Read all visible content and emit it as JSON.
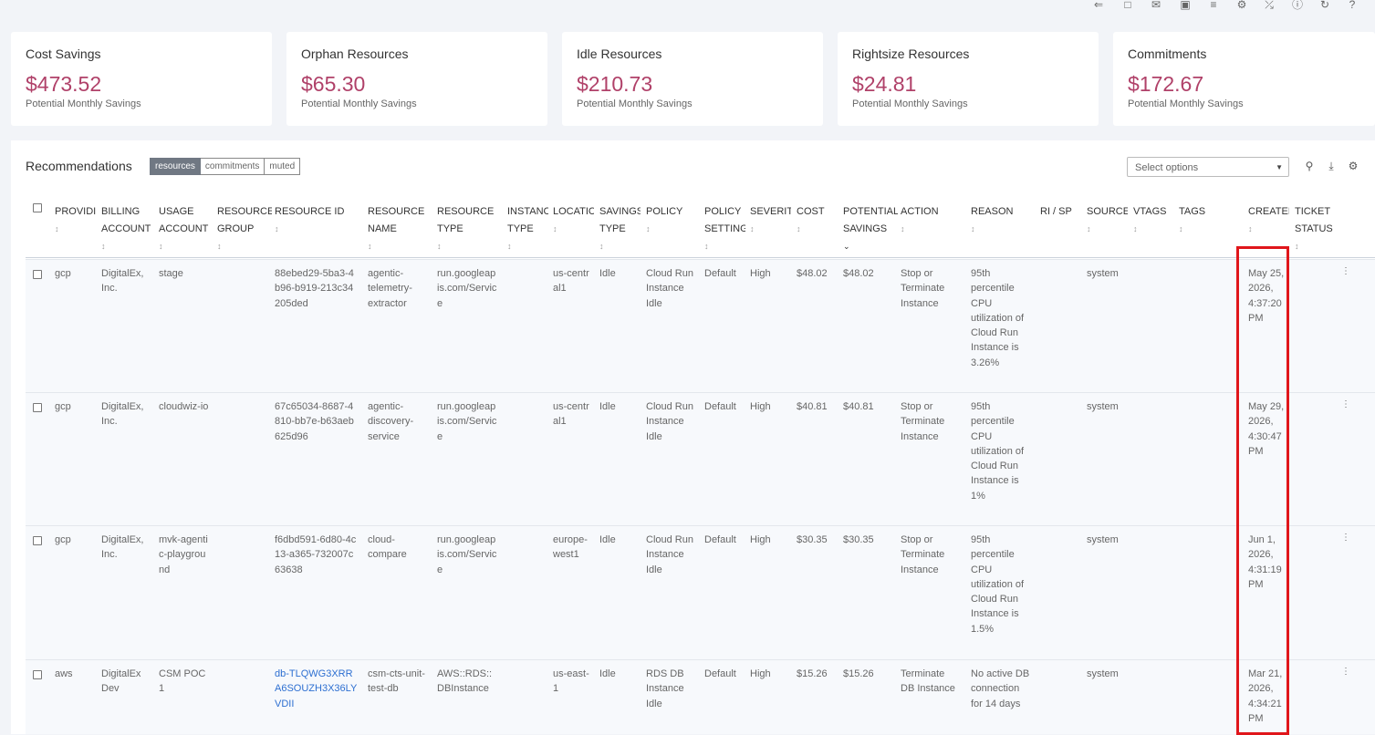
{
  "top_icons": [
    "share-icon",
    "bookmark-icon",
    "mail-icon",
    "camera-icon",
    "sliders-icon",
    "gear-icon",
    "wrench-icon",
    "info-icon",
    "refresh-icon",
    "help-icon"
  ],
  "cards": [
    {
      "title": "Cost Savings",
      "value": "$473.52",
      "sub": "Potential Monthly Savings"
    },
    {
      "title": "Orphan Resources",
      "value": "$65.30",
      "sub": "Potential Monthly Savings"
    },
    {
      "title": "Idle Resources",
      "value": "$210.73",
      "sub": "Potential Monthly Savings"
    },
    {
      "title": "Rightsize Resources",
      "value": "$24.81",
      "sub": "Potential Monthly Savings"
    },
    {
      "title": "Commitments",
      "value": "$172.67",
      "sub": "Potential Monthly Savings"
    }
  ],
  "recommendations": {
    "title": "Recommendations",
    "tabs": [
      "resources",
      "commitments",
      "muted"
    ],
    "active_tab": "resources",
    "select_placeholder": "Select options"
  },
  "columns": [
    {
      "key": "provider",
      "label": "PROVIDI",
      "sortable": true
    },
    {
      "key": "billing",
      "label": "BILLING ACCOUNT",
      "sortable": true
    },
    {
      "key": "usage",
      "label": "USAGE ACCOUNT",
      "sortable": true
    },
    {
      "key": "rgroup",
      "label": "RESOURCE GROUP",
      "sortable": true
    },
    {
      "key": "rid",
      "label": "RESOURCE ID",
      "sortable": true
    },
    {
      "key": "rname",
      "label": "RESOURCE NAME",
      "sortable": true
    },
    {
      "key": "rtype",
      "label": "RESOURCE TYPE",
      "sortable": true
    },
    {
      "key": "itype",
      "label": "INSTANC TYPE",
      "sortable": true
    },
    {
      "key": "location",
      "label": "LOCATIC",
      "sortable": true
    },
    {
      "key": "stype",
      "label": "SAVINGS TYPE",
      "sortable": true
    },
    {
      "key": "policy",
      "label": "POLICY",
      "sortable": true
    },
    {
      "key": "psetting",
      "label": "POLICY SETTING",
      "sortable": true
    },
    {
      "key": "severity",
      "label": "SEVERIT",
      "sortable": true
    },
    {
      "key": "cost",
      "label": "COST",
      "sortable": true
    },
    {
      "key": "psavings",
      "label": "POTENTIAL SAVINGS",
      "sortable": true,
      "sorted": "desc"
    },
    {
      "key": "action",
      "label": "ACTION",
      "sortable": true
    },
    {
      "key": "reason",
      "label": "REASON",
      "sortable": true
    },
    {
      "key": "risp",
      "label": "RI / SP",
      "sortable": false
    },
    {
      "key": "source",
      "label": "SOURCE",
      "sortable": true
    },
    {
      "key": "vtags",
      "label": "VTAGS",
      "sortable": true
    },
    {
      "key": "tags",
      "label": "TAGS",
      "sortable": true
    },
    {
      "key": "created",
      "label": "CREATEI",
      "sortable": true
    },
    {
      "key": "ticket",
      "label": "TICKET STATUS",
      "sortable": true
    }
  ],
  "rows": [
    {
      "provider": "gcp",
      "billing": "DigitalEx, Inc.",
      "usage": "stage",
      "rgroup": "",
      "rid": "88ebed29-5ba3-4b96-b919-213c34205ded",
      "rname": "agentic-telemetry-extractor",
      "rtype": "run.googleapis.com/Service",
      "itype": "",
      "location": "us-central1",
      "stype": "Idle",
      "policy": "Cloud Run Instance Idle",
      "psetting": "Default",
      "severity": "High",
      "cost": "$48.02",
      "psavings": "$48.02",
      "action": "Stop or Terminate Instance",
      "reason": "95th percentile CPU utilization of Cloud Run Instance is 3.26%",
      "risp": "",
      "source": "system",
      "vtags": "",
      "tags": "",
      "created": "May 25, 2026, 4:37:20 PM",
      "ticket": "",
      "link": false
    },
    {
      "provider": "gcp",
      "billing": "DigitalEx, Inc.",
      "usage": "cloudwiz-io",
      "rgroup": "",
      "rid": "67c65034-8687-4810-bb7e-b63aeb625d96",
      "rname": "agentic-discovery-service",
      "rtype": "run.googleapis.com/Service",
      "itype": "",
      "location": "us-central1",
      "stype": "Idle",
      "policy": "Cloud Run Instance Idle",
      "psetting": "Default",
      "severity": "High",
      "cost": "$40.81",
      "psavings": "$40.81",
      "action": "Stop or Terminate Instance",
      "reason": "95th percentile CPU utilization of Cloud Run Instance is 1%",
      "risp": "",
      "source": "system",
      "vtags": "",
      "tags": "",
      "created": "May 29, 2026, 4:30:47 PM",
      "ticket": "",
      "link": false
    },
    {
      "provider": "gcp",
      "billing": "DigitalEx, Inc.",
      "usage": "mvk-agentic-playground",
      "rgroup": "",
      "rid": "f6dbd591-6d80-4c13-a365-732007c63638",
      "rname": "cloud-compare",
      "rtype": "run.googleapis.com/Service",
      "itype": "",
      "location": "europe-west1",
      "stype": "Idle",
      "policy": "Cloud Run Instance Idle",
      "psetting": "Default",
      "severity": "High",
      "cost": "$30.35",
      "psavings": "$30.35",
      "action": "Stop or Terminate Instance",
      "reason": "95th percentile CPU utilization of Cloud Run Instance is 1.5%",
      "risp": "",
      "source": "system",
      "vtags": "",
      "tags": "",
      "created": "Jun 1, 2026, 4:31:19 PM",
      "ticket": "",
      "link": false
    },
    {
      "provider": "aws",
      "billing": "DigitalEx Dev",
      "usage": "CSM POC 1",
      "rgroup": "",
      "rid": "db-TLQWG3XRRA6SOUZH3X36LYVDII",
      "rname": "csm-cts-unit-test-db",
      "rtype": "AWS::RDS::DBInstance",
      "itype": "",
      "location": "us-east-1",
      "stype": "Idle",
      "policy": "RDS DB Instance Idle",
      "psetting": "Default",
      "severity": "High",
      "cost": "$15.26",
      "psavings": "$15.26",
      "action": "Terminate DB Instance",
      "reason": "No active DB connection for 14 days",
      "risp": "",
      "source": "system",
      "vtags": "",
      "tags": "",
      "created": "Mar 21, 2026, 4:34:21 PM",
      "ticket": "",
      "link": true
    }
  ]
}
